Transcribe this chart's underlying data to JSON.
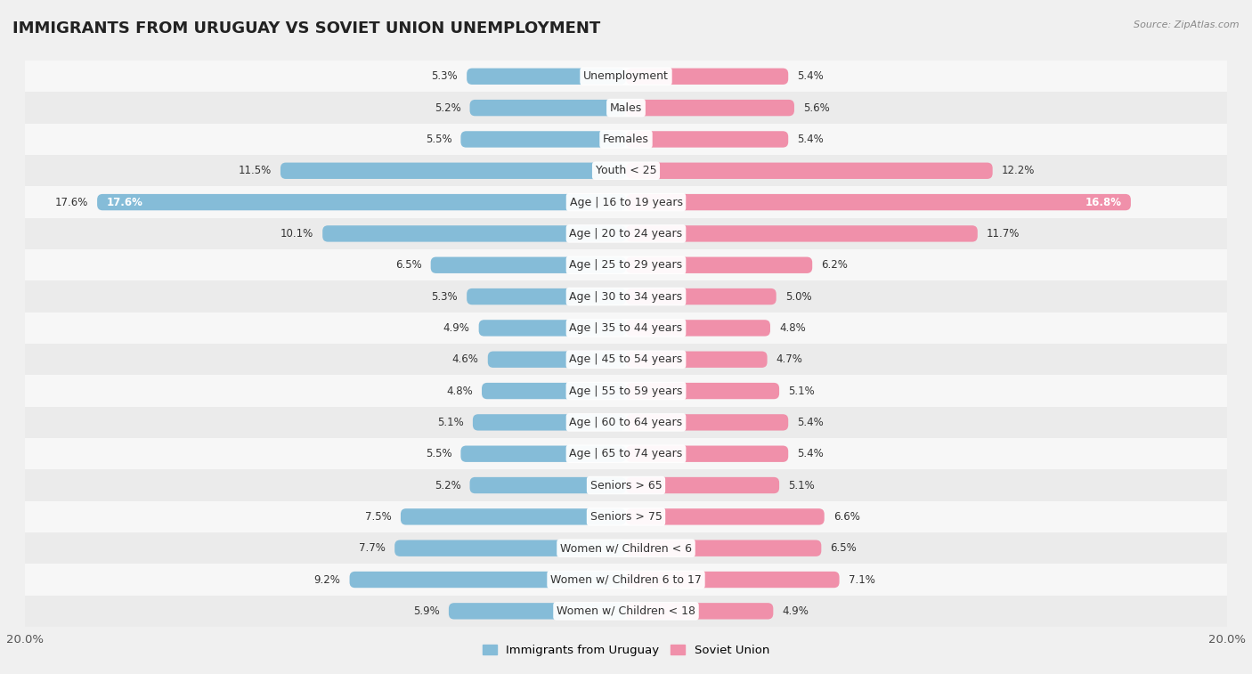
{
  "title": "IMMIGRANTS FROM URUGUAY VS SOVIET UNION UNEMPLOYMENT",
  "source": "Source: ZipAtlas.com",
  "categories": [
    "Unemployment",
    "Males",
    "Females",
    "Youth < 25",
    "Age | 16 to 19 years",
    "Age | 20 to 24 years",
    "Age | 25 to 29 years",
    "Age | 30 to 34 years",
    "Age | 35 to 44 years",
    "Age | 45 to 54 years",
    "Age | 55 to 59 years",
    "Age | 60 to 64 years",
    "Age | 65 to 74 years",
    "Seniors > 65",
    "Seniors > 75",
    "Women w/ Children < 6",
    "Women w/ Children 6 to 17",
    "Women w/ Children < 18"
  ],
  "uruguay_values": [
    5.3,
    5.2,
    5.5,
    11.5,
    17.6,
    10.1,
    6.5,
    5.3,
    4.9,
    4.6,
    4.8,
    5.1,
    5.5,
    5.2,
    7.5,
    7.7,
    9.2,
    5.9
  ],
  "soviet_values": [
    5.4,
    5.6,
    5.4,
    12.2,
    16.8,
    11.7,
    6.2,
    5.0,
    4.8,
    4.7,
    5.1,
    5.4,
    5.4,
    5.1,
    6.6,
    6.5,
    7.1,
    4.9
  ],
  "uruguay_color": "#85bcd8",
  "soviet_color": "#f090aa",
  "uruguay_label": "Immigrants from Uruguay",
  "soviet_label": "Soviet Union",
  "xlim": 20.0,
  "bar_height": 0.52,
  "row_colors": [
    "#f7f7f7",
    "#ebebeb"
  ],
  "title_fontsize": 13,
  "label_fontsize": 9,
  "value_fontsize": 8.5,
  "legend_fontsize": 9.5
}
